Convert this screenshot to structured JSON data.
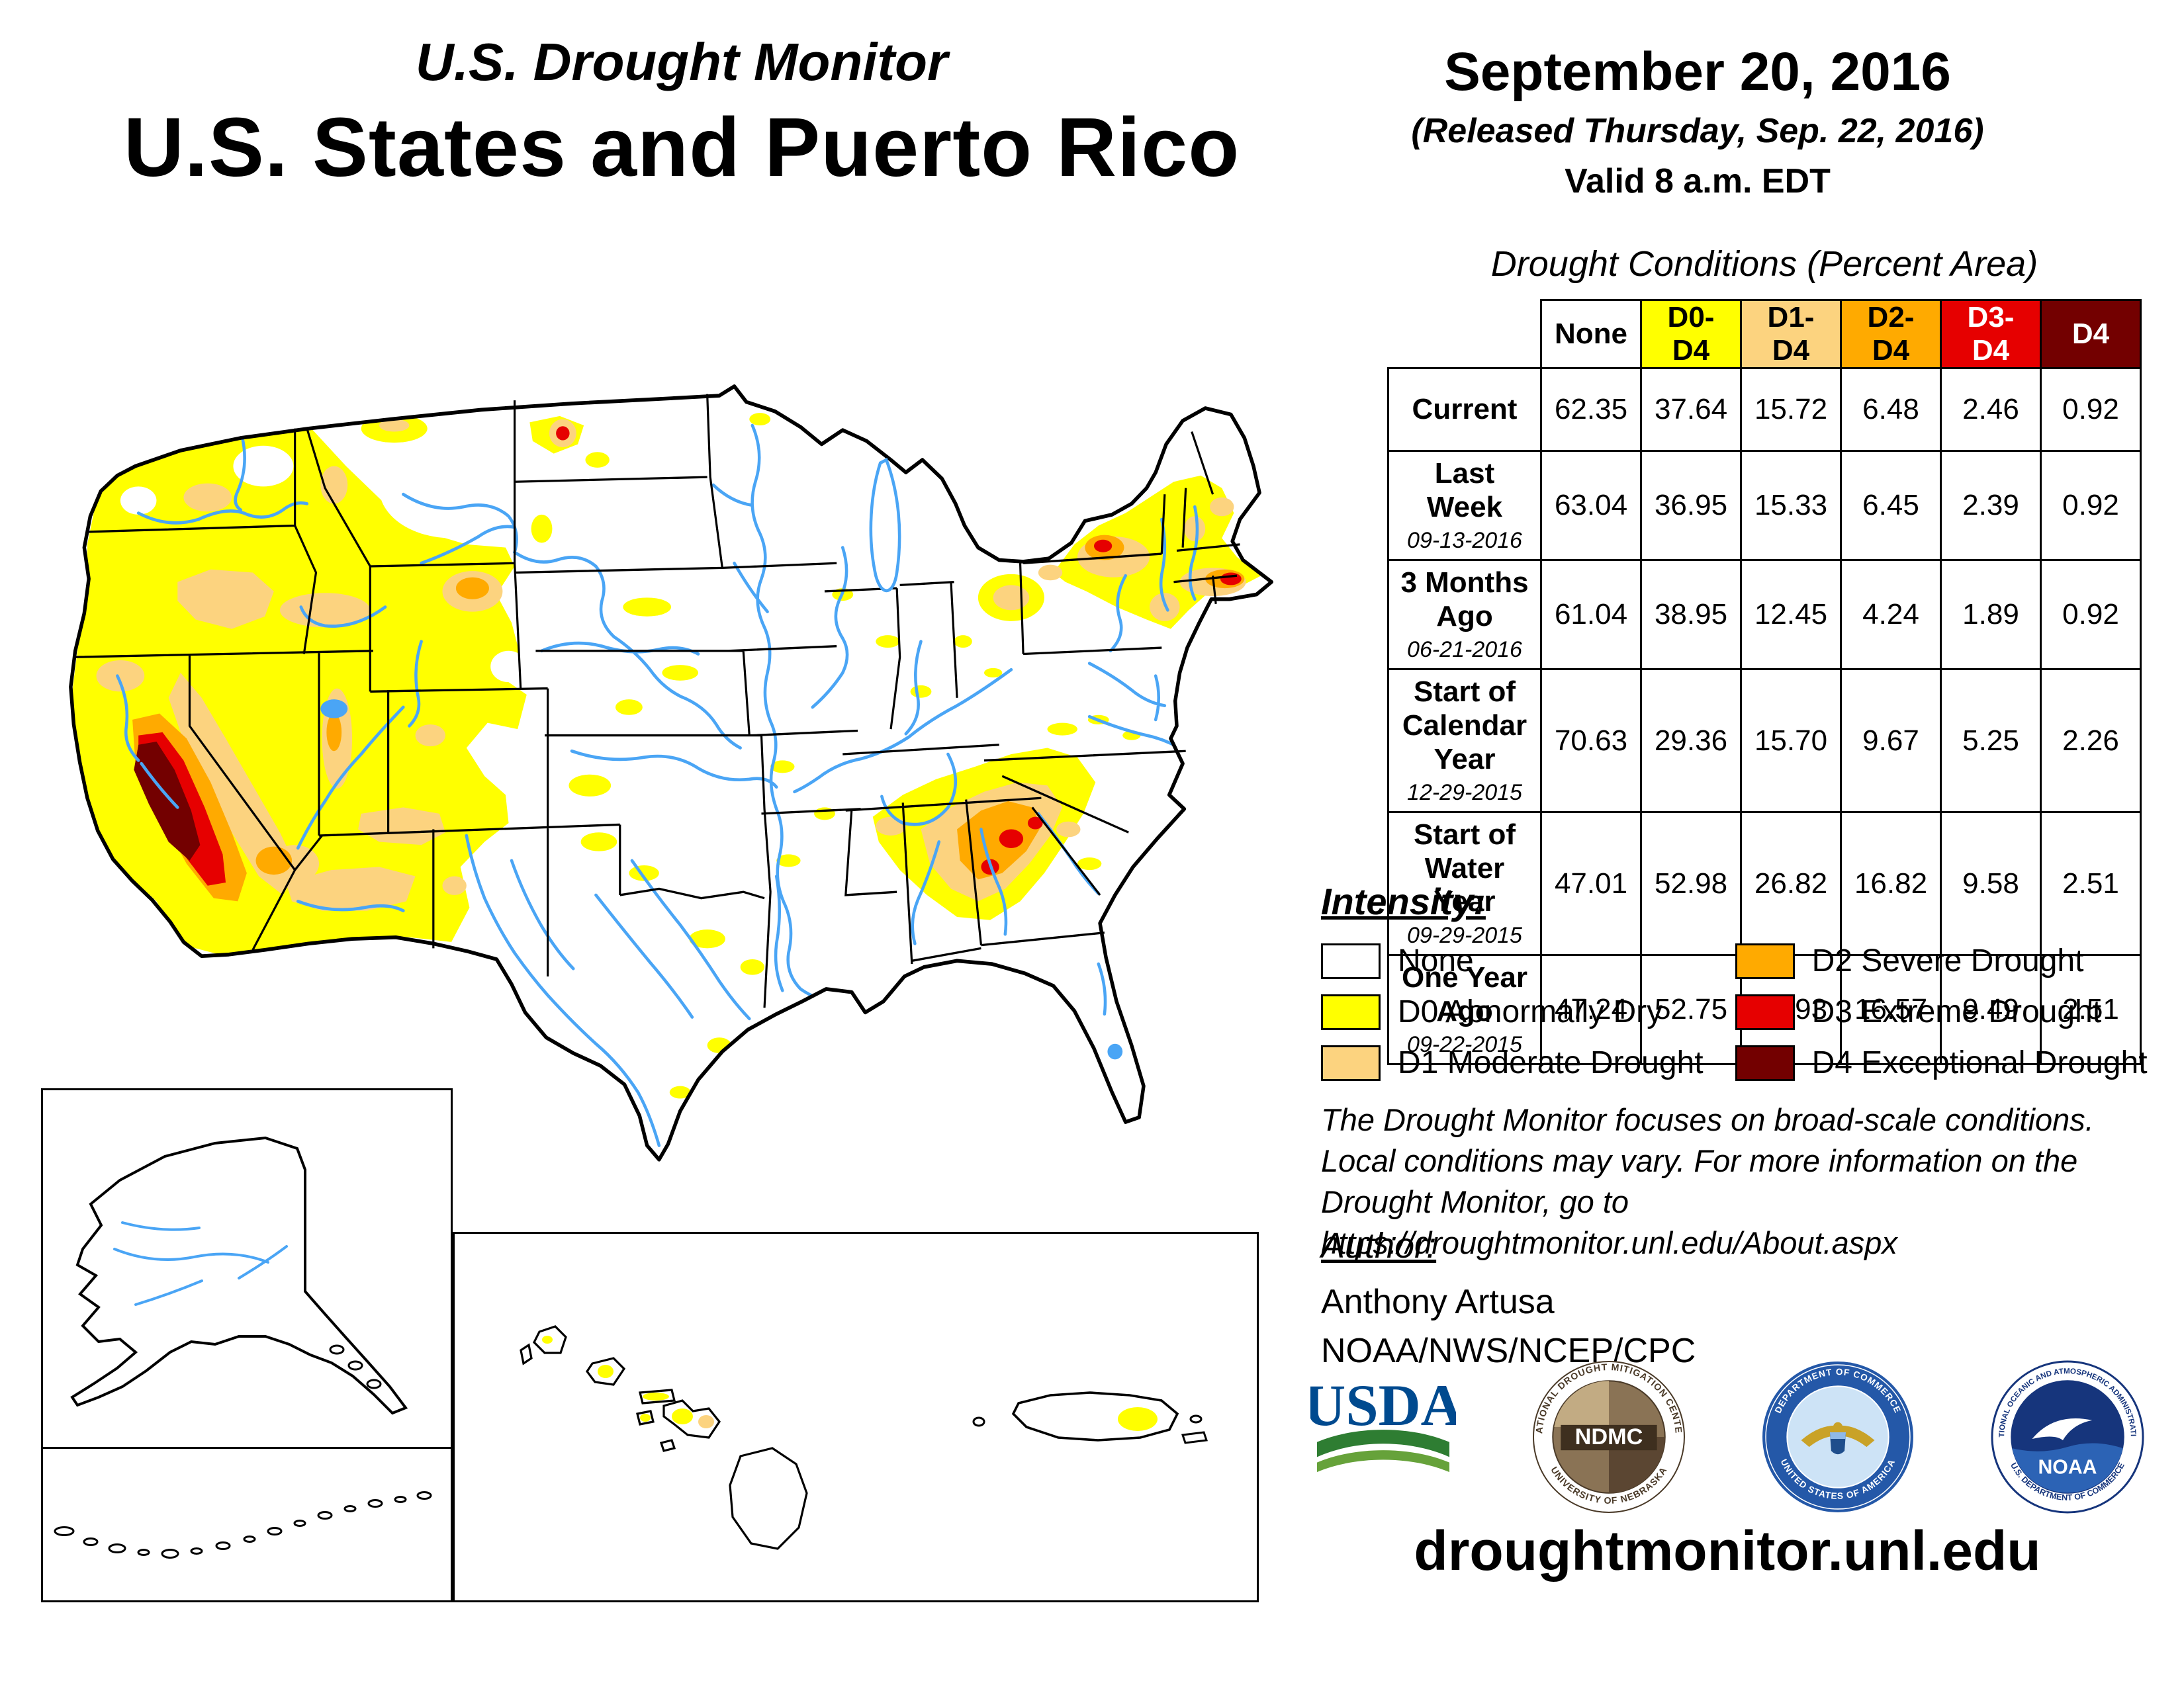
{
  "header": {
    "title_line1": "U.S. Drought Monitor",
    "title_line2": "U.S. States and Puerto Rico",
    "date": "September 20, 2016",
    "released": "(Released Thursday, Sep. 22, 2016)",
    "valid": "Valid 8 a.m. EDT"
  },
  "table": {
    "title": "Drought Conditions (Percent Area)",
    "columns": [
      {
        "label": "None",
        "bg": "#FFFFFF",
        "fg": "#000000"
      },
      {
        "label": "D0-D4",
        "bg": "#FFFF00",
        "fg": "#000000"
      },
      {
        "label": "D1-D4",
        "bg": "#FCD37F",
        "fg": "#000000"
      },
      {
        "label": "D2-D4",
        "bg": "#FFAA00",
        "fg": "#000000"
      },
      {
        "label": "D3-D4",
        "bg": "#E60000",
        "fg": "#FFFFFF"
      },
      {
        "label": "D4",
        "bg": "#730000",
        "fg": "#FFFFFF"
      }
    ],
    "rows": [
      {
        "label": "Current",
        "sublabel": "",
        "values": [
          "62.35",
          "37.64",
          "15.72",
          "6.48",
          "2.46",
          "0.92"
        ]
      },
      {
        "label": "Last Week",
        "sublabel": "09-13-2016",
        "values": [
          "63.04",
          "36.95",
          "15.33",
          "6.45",
          "2.39",
          "0.92"
        ]
      },
      {
        "label": "3 Months Ago",
        "sublabel": "06-21-2016",
        "values": [
          "61.04",
          "38.95",
          "12.45",
          "4.24",
          "1.89",
          "0.92"
        ]
      },
      {
        "label": "Start of Calendar Year",
        "sublabel": "12-29-2015",
        "values": [
          "70.63",
          "29.36",
          "15.70",
          "9.67",
          "5.25",
          "2.26"
        ]
      },
      {
        "label": "Start of Water Year",
        "sublabel": "09-29-2015",
        "values": [
          "47.01",
          "52.98",
          "26.82",
          "16.82",
          "9.58",
          "2.51"
        ]
      },
      {
        "label": "One Year Ago",
        "sublabel": "09-22-2015",
        "values": [
          "47.24",
          "52.75",
          "26.93",
          "16.57",
          "9.49",
          "2.51"
        ]
      }
    ]
  },
  "legend": {
    "title": "Intensity:",
    "items": [
      {
        "label": "None",
        "color": "#FFFFFF"
      },
      {
        "label": "D0 Abnormally Dry",
        "color": "#FFFF00"
      },
      {
        "label": "D1 Moderate Drought",
        "color": "#FCD37F"
      },
      {
        "label": "D2 Severe Drought",
        "color": "#FFAA00"
      },
      {
        "label": "D3 Extreme Drought",
        "color": "#E60000"
      },
      {
        "label": "D4 Exceptional Drought",
        "color": "#730000"
      }
    ]
  },
  "disclaimer": {
    "lines": [
      "The Drought Monitor focuses on broad-scale conditions.",
      "Local conditions may vary. For more information on the",
      "Drought Monitor, go to https://droughtmonitor.unl.edu/About.aspx"
    ]
  },
  "author": {
    "heading": "Author:",
    "name": "Anthony Artusa",
    "org": "NOAA/NWS/NCEP/CPC"
  },
  "logos": {
    "usda": "USDA",
    "ndmc": "NDMC",
    "ndmc_ring_top": "NATIONAL DROUGHT MITIGATION CENTER",
    "ndmc_ring_bottom": "UNIVERSITY OF NEBRASKA",
    "doc_ring_top": "DEPARTMENT OF COMMERCE",
    "doc_ring_bottom": "UNITED STATES OF AMERICA",
    "noaa": "NOAA",
    "noaa_ring_top": "NATIONAL OCEANIC AND ATMOSPHERIC ADMINISTRATION",
    "noaa_ring_bottom": "U.S. DEPARTMENT OF COMMERCE"
  },
  "footer": {
    "url": "droughtmonitor.unl.edu"
  },
  "map": {
    "colors": {
      "none": "#FFFFFF",
      "d0": "#FFFF00",
      "d1": "#FCD37F",
      "d2": "#FFAA00",
      "d3": "#E60000",
      "d4": "#730000",
      "river": "#4AA5F5"
    }
  }
}
